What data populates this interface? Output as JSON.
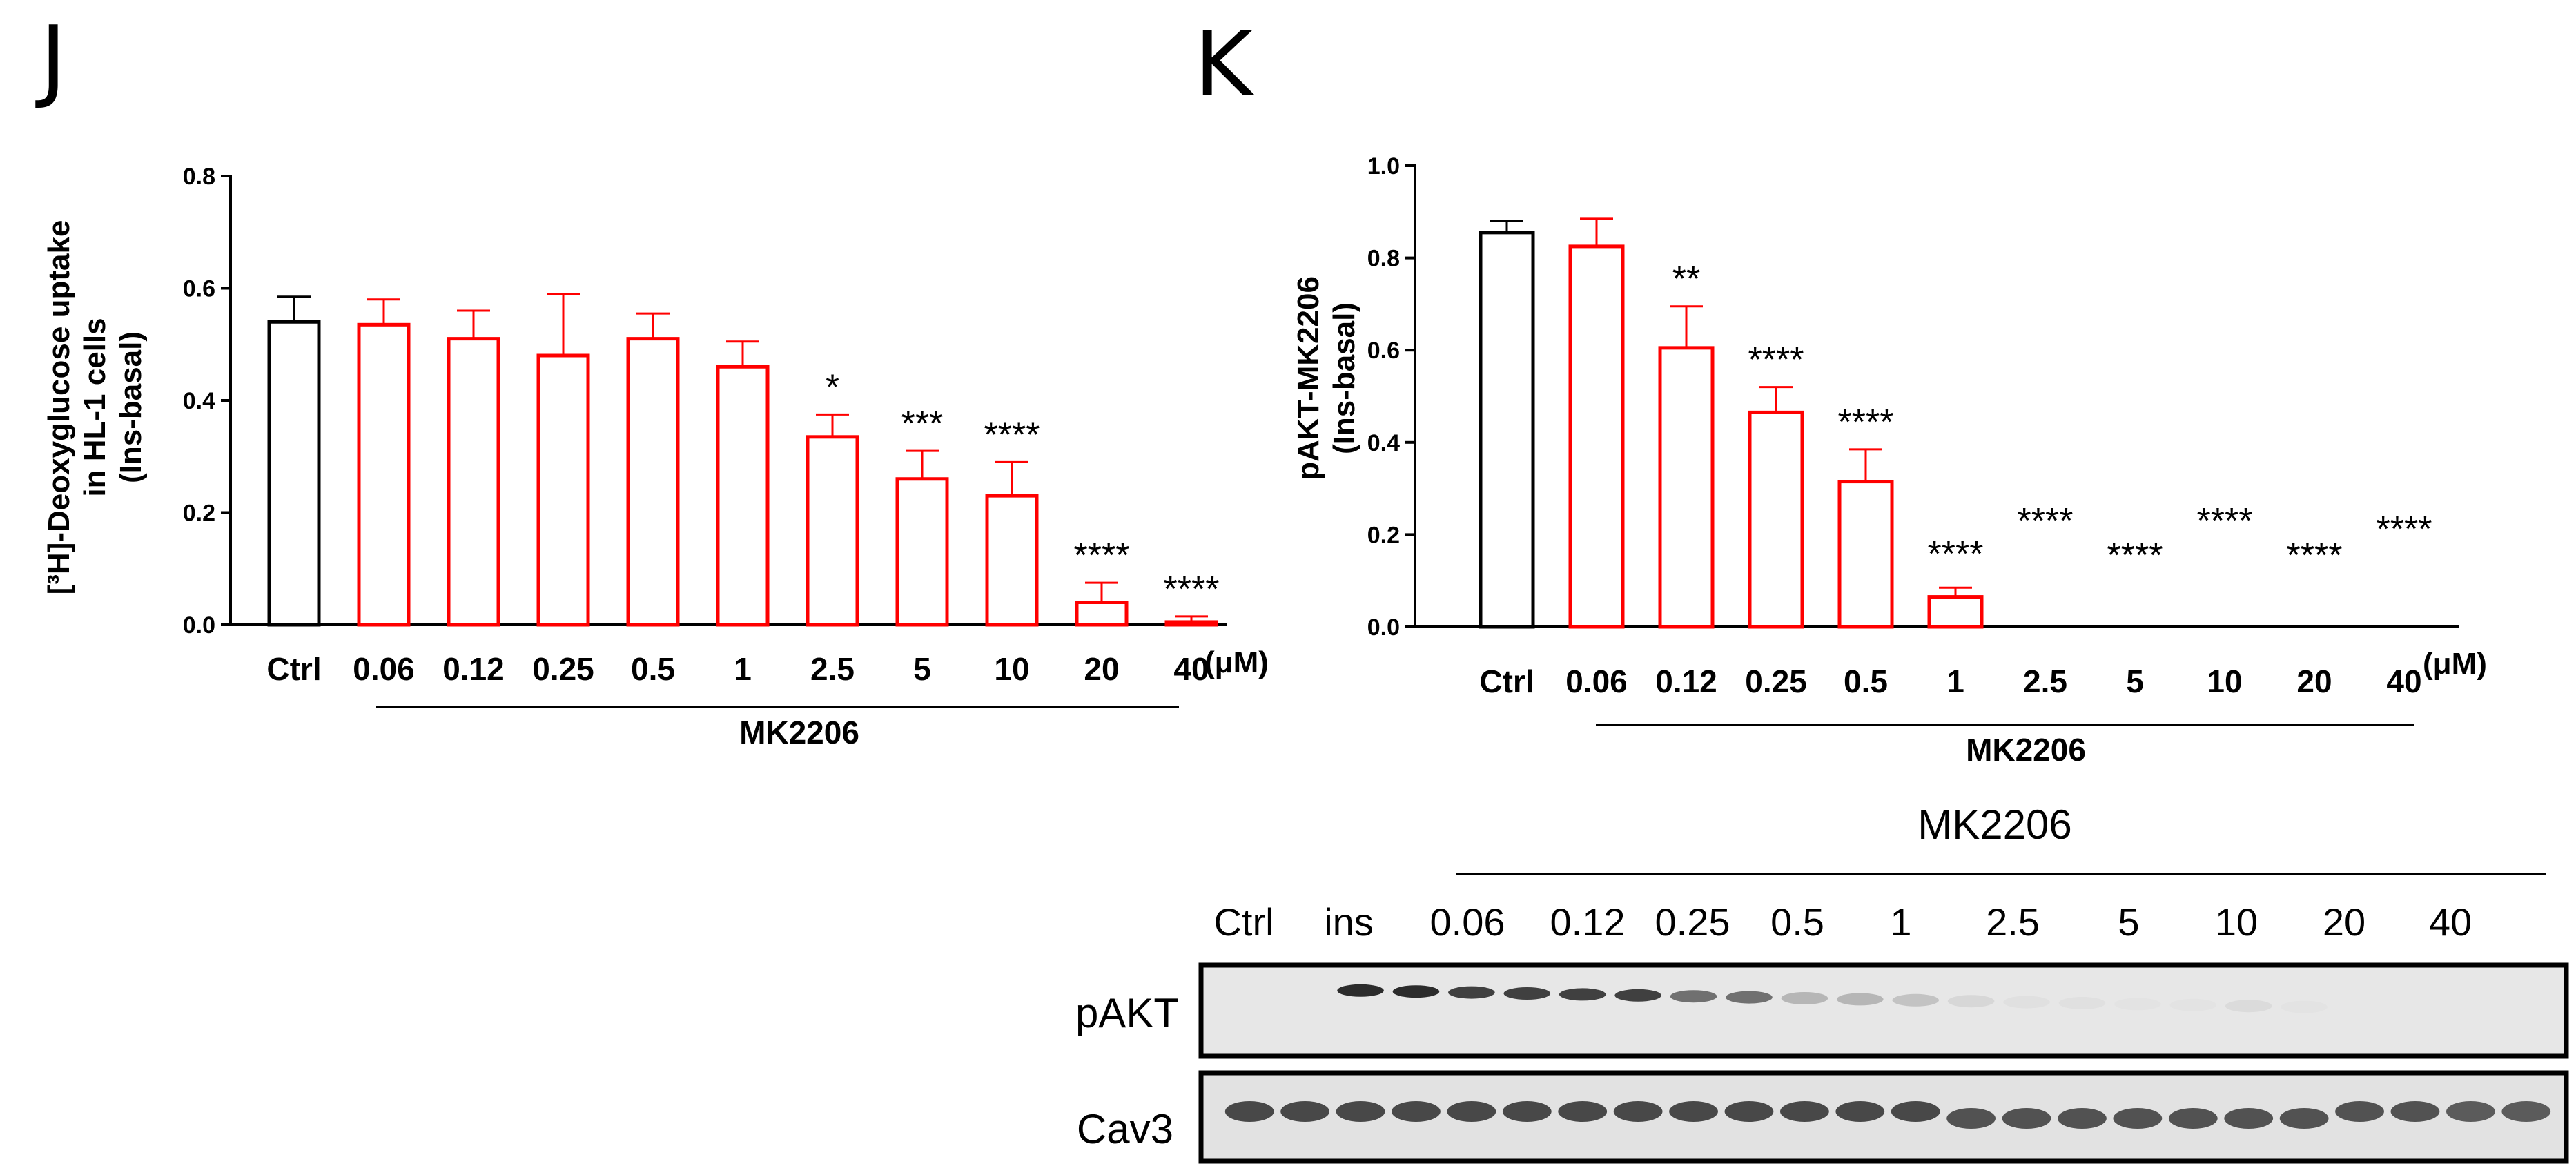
{
  "chart_data": [
    {
      "panel": "J",
      "type": "bar",
      "ylabel_lines": [
        "[³H]-Deoxyglucose uptake",
        "in HL-1 cells",
        "(Ins-basal)"
      ],
      "ylim": [
        0,
        0.8
      ],
      "yticks": [
        "0.0",
        "0.2",
        "0.4",
        "0.6",
        "0.8"
      ],
      "categories": [
        "Ctrl",
        "0.06",
        "0.12",
        "0.25",
        "0.5",
        "1",
        "2.5",
        "5",
        "10",
        "20",
        "40"
      ],
      "values": [
        0.54,
        0.535,
        0.51,
        0.48,
        0.51,
        0.46,
        0.335,
        0.26,
        0.23,
        0.04,
        0.005
      ],
      "errors": [
        0.045,
        0.045,
        0.05,
        0.11,
        0.045,
        0.045,
        0.04,
        0.05,
        0.06,
        0.035,
        0.01
      ],
      "significance": [
        "",
        "",
        "",
        "",
        "",
        "",
        "*",
        "***",
        "****",
        "****",
        "****"
      ],
      "colors": [
        "#000000",
        "#ff0000",
        "#ff0000",
        "#ff0000",
        "#ff0000",
        "#ff0000",
        "#ff0000",
        "#ff0000",
        "#ff0000",
        "#ff0000",
        "#ff0000"
      ],
      "unit": "(μM)",
      "treatment": "MK2206"
    },
    {
      "panel": "K",
      "type": "bar",
      "ylabel_lines": [
        "pAKT-MK2206",
        "(Ins-basal)"
      ],
      "ylim": [
        0,
        1.0
      ],
      "yticks": [
        "0.0",
        "0.2",
        "0.4",
        "0.6",
        "0.8",
        "1.0"
      ],
      "categories": [
        "Ctrl",
        "0.06",
        "0.12",
        "0.25",
        "0.5",
        "1",
        "2.5",
        "5",
        "10",
        "20",
        "40"
      ],
      "values": [
        0.855,
        0.825,
        0.605,
        0.465,
        0.315,
        0.065,
        0,
        0,
        0,
        0,
        0
      ],
      "errors": [
        0.025,
        0.06,
        0.09,
        0.055,
        0.07,
        0.02,
        0,
        0,
        0,
        0,
        0
      ],
      "significance": [
        "",
        "",
        "**",
        "****",
        "****",
        "****",
        "****",
        "****",
        "****",
        "****",
        "****"
      ],
      "colors": [
        "#000000",
        "#ff0000",
        "#ff0000",
        "#ff0000",
        "#ff0000",
        "#ff0000",
        "#ff0000",
        "#ff0000",
        "#ff0000",
        "#ff0000",
        "#ff0000"
      ],
      "unit": "(μM)",
      "treatment": "MK2206"
    }
  ],
  "blot": {
    "header": "MK2206",
    "lanes": [
      "Ctrl",
      "ins",
      "0.06",
      "0.12",
      "0.25",
      "0.5",
      "1",
      "2.5",
      "5",
      "10",
      "20",
      "40"
    ],
    "rows": [
      "pAKT",
      "Cav3"
    ],
    "pakt_intensity": [
      0.0,
      0.0,
      0.95,
      0.95,
      0.85,
      0.85,
      0.85,
      0.85,
      0.6,
      0.6,
      0.25,
      0.25,
      0.18,
      0.08,
      0.03,
      0.03,
      0.02,
      0.02,
      0.06,
      0.02,
      0.0,
      0.0,
      0.0,
      0.0
    ],
    "cav3_intensity": [
      0.8,
      0.8,
      0.8,
      0.8,
      0.8,
      0.8,
      0.8,
      0.8,
      0.8,
      0.8,
      0.8,
      0.8,
      0.8,
      0.75,
      0.75,
      0.75,
      0.75,
      0.75,
      0.75,
      0.75,
      0.75,
      0.75,
      0.7,
      0.7
    ]
  }
}
